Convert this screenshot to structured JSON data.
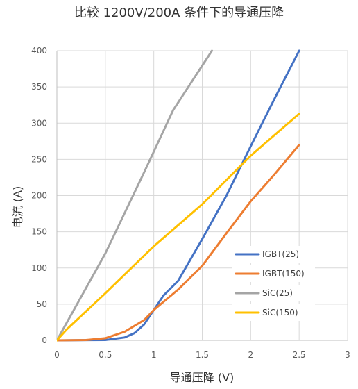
{
  "chart_data": {
    "type": "line",
    "title": "比较 1200V/200A 条件下的导通压降",
    "xlabel": "导通压降 (V)",
    "ylabel": "电流 (A)",
    "xlim": [
      0,
      3
    ],
    "ylim": [
      0,
      400
    ],
    "xticks": [
      "0",
      "0.5",
      "1",
      "1.5",
      "2",
      "2.5",
      "3"
    ],
    "yticks": [
      "0",
      "50",
      "100",
      "150",
      "200",
      "250",
      "300",
      "350",
      "400"
    ],
    "grid": true,
    "legend_position": "bottom-right",
    "series": [
      {
        "name": "IGBT(25)",
        "color": "#4472C4",
        "points": [
          [
            0,
            0
          ],
          [
            0.5,
            0.5
          ],
          [
            0.7,
            4
          ],
          [
            0.8,
            10
          ],
          [
            0.9,
            22
          ],
          [
            1.0,
            42
          ],
          [
            1.1,
            62
          ],
          [
            1.25,
            82
          ],
          [
            1.5,
            140
          ],
          [
            1.75,
            200
          ],
          [
            2.0,
            268
          ],
          [
            2.25,
            335
          ],
          [
            2.5,
            400
          ]
        ]
      },
      {
        "name": "IGBT(150)",
        "color": "#ED7D31",
        "points": [
          [
            0,
            0
          ],
          [
            0.3,
            0.5
          ],
          [
            0.5,
            3
          ],
          [
            0.7,
            12
          ],
          [
            0.9,
            28
          ],
          [
            1.0,
            42
          ],
          [
            1.25,
            70
          ],
          [
            1.5,
            103
          ],
          [
            1.75,
            148
          ],
          [
            2.0,
            192
          ],
          [
            2.25,
            230
          ],
          [
            2.5,
            270
          ]
        ]
      },
      {
        "name": "SiC(25)",
        "color": "#A5A5A5",
        "points": [
          [
            0,
            0
          ],
          [
            0.5,
            120
          ],
          [
            0.9,
            232
          ],
          [
            1.2,
            318
          ],
          [
            1.6,
            400
          ]
        ]
      },
      {
        "name": "SiC(150)",
        "color": "#FFC000",
        "points": [
          [
            0,
            0
          ],
          [
            0.1,
            15
          ],
          [
            0.5,
            65
          ],
          [
            1.0,
            130
          ],
          [
            1.5,
            188
          ],
          [
            2.0,
            255
          ],
          [
            2.5,
            313
          ]
        ]
      }
    ]
  }
}
